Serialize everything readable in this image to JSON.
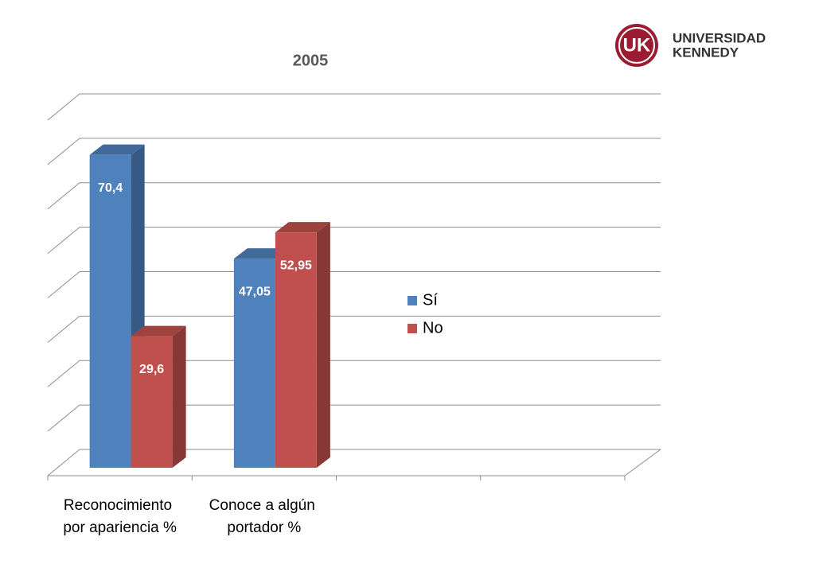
{
  "logo": {
    "mark": "UK",
    "line1": "UNIVERSIDAD",
    "line2": "KENNEDY"
  },
  "chart_data": {
    "type": "bar3d",
    "title": "2005",
    "categories": [
      "Reconocimiento por apariencia %",
      "Conoce a algún portador %",
      null,
      null
    ],
    "series": [
      {
        "name": "Sí",
        "color": "#4f81bd",
        "values": [
          70.4,
          47.05,
          null,
          null
        ],
        "value_labels": [
          "70,4",
          "47,05",
          null,
          null
        ]
      },
      {
        "name": "No",
        "color": "#c0504d",
        "values": [
          29.6,
          52.95,
          null,
          null
        ],
        "value_labels": [
          "29,6",
          "52,95",
          null,
          null
        ]
      }
    ],
    "ylim": [
      0,
      80
    ],
    "yticks": [
      0,
      10,
      20,
      30,
      40,
      50,
      60,
      70,
      80
    ],
    "grid": true,
    "legend": "right"
  }
}
